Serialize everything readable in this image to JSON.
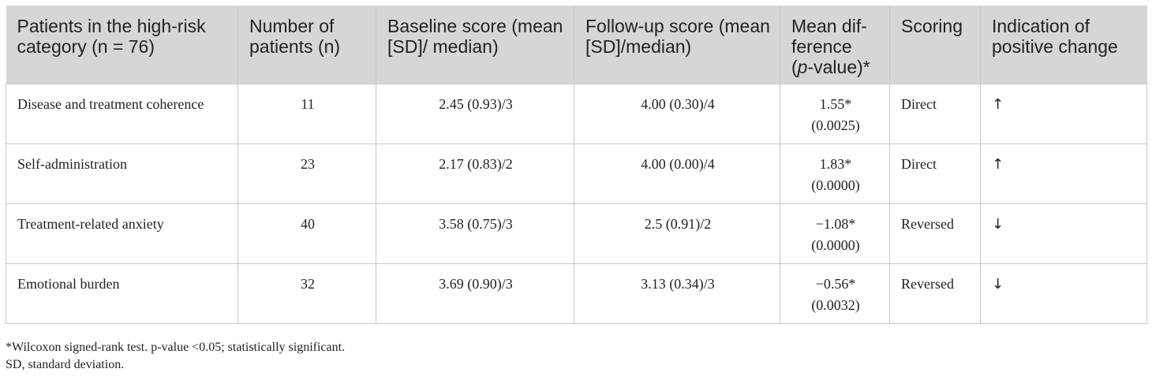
{
  "table": {
    "headers": [
      "Patients in the high-risk category (n = 76)",
      "Number of patients (n)",
      "Baseline score (mean [SD]/ median)",
      "Follow-up score (mean [SD]/median)",
      "Mean dif-ference",
      "(p-value)*",
      "Scoring",
      "Indication of positive change"
    ],
    "rows": [
      {
        "category": "Disease and treatment coherence",
        "n": "11",
        "baseline": "2.45 (0.93)/3",
        "followup": "4.00 (0.30)/4",
        "diff": "1.55*",
        "pvalue": "(0.0025)",
        "scoring": "Direct",
        "indication": "↑"
      },
      {
        "category": "Self-administration",
        "n": "23",
        "baseline": "2.17 (0.83)/2",
        "followup": "4.00 (0.00)/4",
        "diff": "1.83*",
        "pvalue": "(0.0000)",
        "scoring": "Direct",
        "indication": "↑"
      },
      {
        "category": "Treatment-related anxiety",
        "n": "40",
        "baseline": "3.58 (0.75)/3",
        "followup": "2.5 (0.91)/2",
        "diff": "−1.08*",
        "pvalue": "(0.0000)",
        "scoring": "Reversed",
        "indication": "↓"
      },
      {
        "category": "Emotional burden",
        "n": "32",
        "baseline": "3.69 (0.90)/3",
        "followup": "3.13 (0.34)/3",
        "diff": "−0.56*",
        "pvalue": "(0.0032)",
        "scoring": "Reversed",
        "indication": "↓"
      }
    ]
  },
  "footnotes": {
    "line1": "*Wilcoxon signed-rank test. p-value <0.05; statistically significant.",
    "line2": "SD, standard deviation."
  }
}
